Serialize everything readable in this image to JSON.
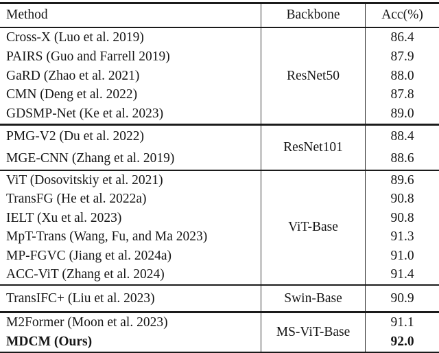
{
  "page": {
    "background_color": "#ffffff",
    "text_color": "#161616",
    "rule_color": "#1b1b1b"
  },
  "table": {
    "columns": [
      {
        "label": "Method"
      },
      {
        "label": "Backbone"
      },
      {
        "label": "Acc(%)"
      }
    ],
    "groups": [
      {
        "backbone": "ResNet50",
        "rows": [
          {
            "method": "Cross-X (Luo et al. 2019)",
            "acc": "86.4"
          },
          {
            "method": "PAIRS (Guo and Farrell 2019)",
            "acc": "87.9"
          },
          {
            "method": "GaRD (Zhao et al. 2021)",
            "acc": "88.0"
          },
          {
            "method": "CMN (Deng et al. 2022)",
            "acc": "87.8"
          },
          {
            "method": "GDSMP-Net (Ke et al. 2023)",
            "acc": "89.0"
          }
        ]
      },
      {
        "backbone": "ResNet101",
        "rows": [
          {
            "method": "PMG-V2 (Du et al. 2022)",
            "acc": "88.4"
          },
          {
            "method": "MGE-CNN (Zhang et al. 2019)",
            "acc": "88.6"
          }
        ]
      },
      {
        "backbone": "ViT-Base",
        "rows": [
          {
            "method": "ViT (Dosovitskiy et al. 2021)",
            "acc": "89.6"
          },
          {
            "method": "TransFG (He et al. 2022a)",
            "acc": "90.8"
          },
          {
            "method": "IELT (Xu et al. 2023)",
            "acc": "90.8"
          },
          {
            "method": "MpT-Trans (Wang, Fu, and Ma 2023)",
            "acc": "91.3"
          },
          {
            "method": "MP-FGVC (Jiang et al. 2024a)",
            "acc": "91.0"
          },
          {
            "method": "ACC-ViT (Zhang et al. 2024)",
            "acc": "91.4"
          }
        ]
      },
      {
        "backbone": "Swin-Base",
        "rows": [
          {
            "method": "TransIFC+ (Liu et al. 2023)",
            "acc": "90.9"
          }
        ]
      },
      {
        "backbone": "MS-ViT-Base",
        "rows": [
          {
            "method": "M2Former (Moon et al. 2023)",
            "acc": "91.1"
          },
          {
            "method": "MDCM (Ours)",
            "acc": "92.0",
            "emphasis": "bold"
          }
        ]
      }
    ]
  },
  "chart_data": {
    "type": "table",
    "title": "",
    "columns": [
      "Method",
      "Backbone",
      "Acc(%)"
    ],
    "rows": [
      [
        "Cross-X (Luo et al. 2019)",
        "ResNet50",
        86.4
      ],
      [
        "PAIRS (Guo and Farrell 2019)",
        "ResNet50",
        87.9
      ],
      [
        "GaRD (Zhao et al. 2021)",
        "ResNet50",
        88.0
      ],
      [
        "CMN (Deng et al. 2022)",
        "ResNet50",
        87.8
      ],
      [
        "GDSMP-Net (Ke et al. 2023)",
        "ResNet50",
        89.0
      ],
      [
        "PMG-V2 (Du et al. 2022)",
        "ResNet101",
        88.4
      ],
      [
        "MGE-CNN (Zhang et al. 2019)",
        "ResNet101",
        88.6
      ],
      [
        "ViT (Dosovitskiy et al. 2021)",
        "ViT-Base",
        89.6
      ],
      [
        "TransFG (He et al. 2022a)",
        "ViT-Base",
        90.8
      ],
      [
        "IELT (Xu et al. 2023)",
        "ViT-Base",
        90.8
      ],
      [
        "MpT-Trans (Wang, Fu, and Ma 2023)",
        "ViT-Base",
        91.3
      ],
      [
        "MP-FGVC (Jiang et al. 2024a)",
        "ViT-Base",
        91.0
      ],
      [
        "ACC-ViT (Zhang et al. 2024)",
        "ViT-Base",
        91.4
      ],
      [
        "TransIFC+ (Liu et al. 2023)",
        "Swin-Base",
        90.9
      ],
      [
        "M2Former (Moon et al. 2023)",
        "MS-ViT-Base",
        91.1
      ],
      [
        "MDCM (Ours)",
        "MS-ViT-Base",
        92.0
      ]
    ]
  }
}
